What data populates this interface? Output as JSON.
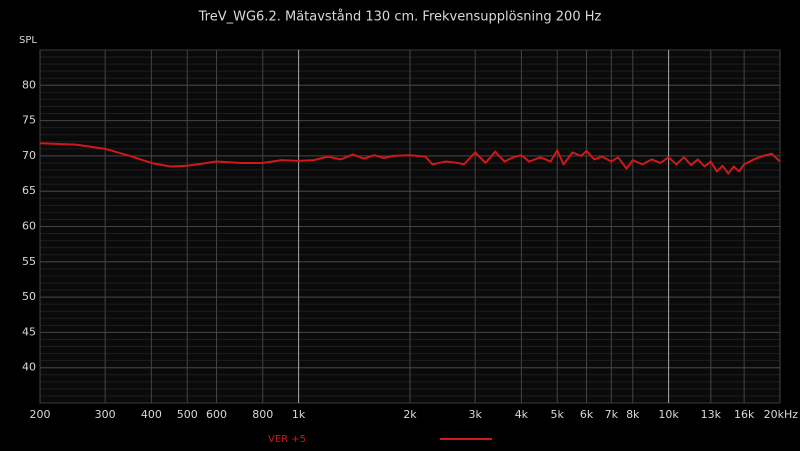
{
  "chart_data": {
    "type": "line",
    "title": "TreV_WG6.2. Mätavstånd 130 cm. Frekvensupplösning 200 Hz",
    "ylabel": "SPL",
    "xscale": "log",
    "xlim": [
      200,
      20000
    ],
    "ylim": [
      35,
      85
    ],
    "xticks": [
      200,
      300,
      400,
      500,
      600,
      800,
      {
        "value": 1000,
        "label": "1k"
      },
      {
        "value": 2000,
        "label": "2k"
      },
      {
        "value": 3000,
        "label": "3k"
      },
      {
        "value": 4000,
        "label": "4k"
      },
      {
        "value": 5000,
        "label": "5k"
      },
      {
        "value": 6000,
        "label": "6k"
      },
      {
        "value": 7000,
        "label": "7k"
      },
      {
        "value": 8000,
        "label": "8k"
      },
      {
        "value": 10000,
        "label": "10k"
      },
      {
        "value": 13000,
        "label": "13k"
      },
      {
        "value": 16000,
        "label": "16k"
      },
      {
        "value": 20000,
        "label": "20kHz"
      }
    ],
    "yticks": [
      40,
      45,
      50,
      55,
      60,
      65,
      70,
      75,
      80
    ],
    "grid": true,
    "x": [
      200,
      250,
      300,
      350,
      400,
      450,
      500,
      550,
      600,
      700,
      800,
      900,
      1000,
      1100,
      1200,
      1300,
      1400,
      1500,
      1600,
      1700,
      1800,
      2000,
      2200,
      2300,
      2500,
      2700,
      2800,
      3000,
      3200,
      3400,
      3600,
      3800,
      4000,
      4200,
      4500,
      4800,
      5000,
      5200,
      5500,
      5800,
      6000,
      6300,
      6600,
      7000,
      7300,
      7700,
      8000,
      8500,
      9000,
      9500,
      10000,
      10500,
      11000,
      11500,
      12000,
      12500,
      13000,
      13500,
      14000,
      14500,
      15000,
      15500,
      16000,
      17000,
      18000,
      19000,
      20000
    ],
    "series": [
      {
        "name": "VER +5",
        "color": "#d01818",
        "values": [
          71.8,
          71.6,
          71.0,
          70.0,
          69.0,
          68.5,
          68.6,
          68.9,
          69.2,
          69.0,
          69.0,
          69.4,
          69.3,
          69.4,
          69.9,
          69.5,
          70.2,
          69.6,
          70.1,
          69.7,
          70.0,
          70.1,
          69.9,
          68.8,
          69.2,
          69.0,
          68.8,
          70.5,
          69.0,
          70.6,
          69.2,
          69.8,
          70.1,
          69.2,
          69.8,
          69.2,
          70.8,
          68.8,
          70.5,
          70.0,
          70.7,
          69.5,
          69.9,
          69.2,
          69.8,
          68.2,
          69.4,
          68.8,
          69.5,
          69.0,
          69.8,
          68.8,
          69.8,
          68.7,
          69.5,
          68.5,
          69.2,
          67.8,
          68.6,
          67.5,
          68.5,
          67.8,
          68.8,
          69.5,
          70.0,
          70.3,
          69.2
        ]
      }
    ]
  }
}
